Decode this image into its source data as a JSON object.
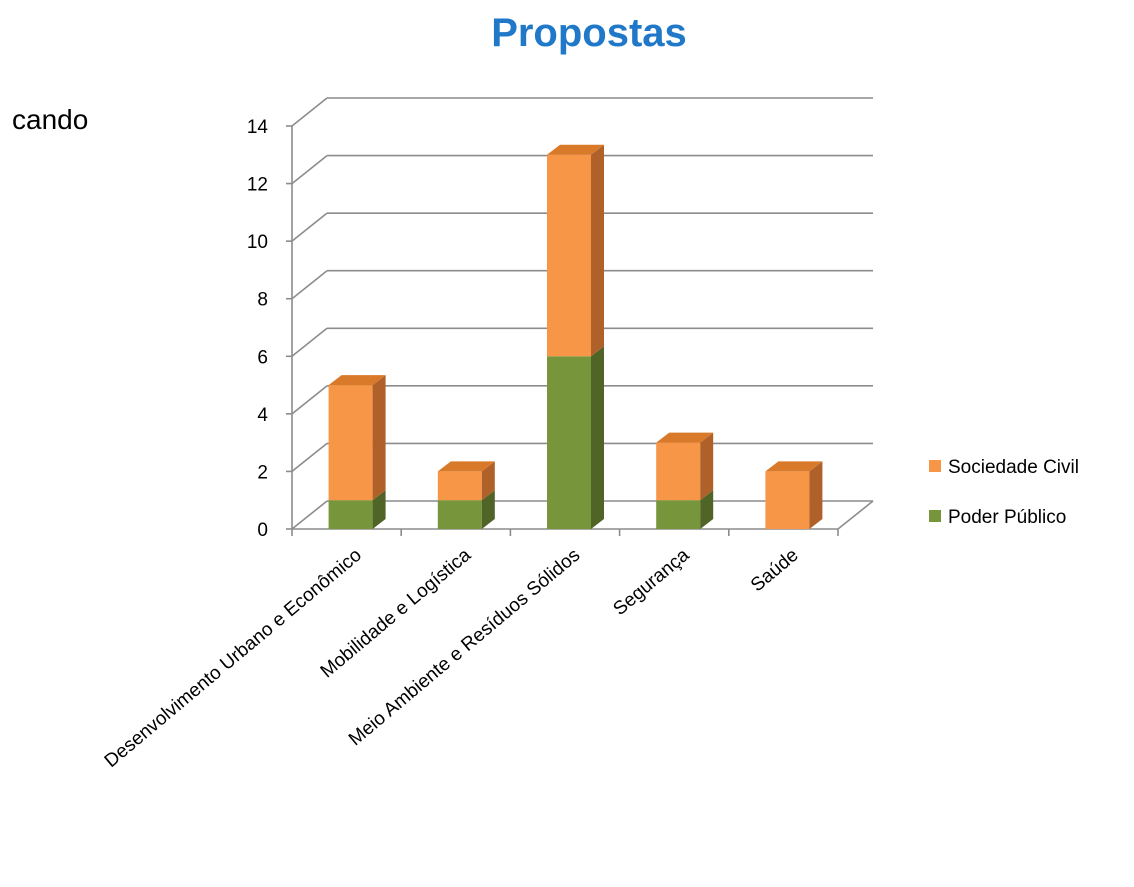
{
  "background_text": "cando",
  "colors": {
    "title": "#1F78C8",
    "sociedade_front": "#F79646",
    "sociedade_top": "#D9792A",
    "sociedade_side": "#B0612A",
    "poder_front": "#77963C",
    "poder_top": "#5E7A2C",
    "poder_side": "#4F6426",
    "grid": "#8C8C8C"
  },
  "chart_data": {
    "type": "bar",
    "stacked": true,
    "three_d": true,
    "title": "Propostas",
    "categories": [
      "Desenvolvimento Urbano e Econômico",
      "Mobilidade e Logística",
      "Meio Ambiente e Resíduos Sólidos",
      "Segurança",
      "Saúde"
    ],
    "series": [
      {
        "name": "Poder Público",
        "values": [
          1,
          1,
          6,
          1,
          0
        ]
      },
      {
        "name": "Sociedade Civil",
        "values": [
          4,
          1,
          7,
          2,
          2
        ]
      }
    ],
    "ylim": [
      0,
      14
    ],
    "yticks": [
      0,
      2,
      4,
      6,
      8,
      10,
      12,
      14
    ],
    "grid": true,
    "legend_position": "right",
    "legend": [
      {
        "name": "Sociedade Civil"
      },
      {
        "name": "Poder Público"
      }
    ]
  }
}
